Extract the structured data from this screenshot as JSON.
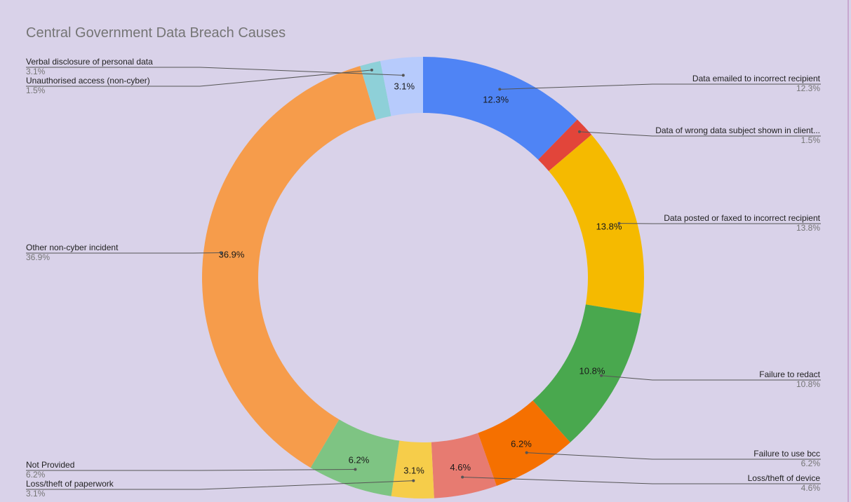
{
  "chart_data": {
    "type": "pie",
    "donut": true,
    "title": "Central Government Data Breach Causes",
    "slices": [
      {
        "label": "Data emailed to incorrect recipient",
        "value": 12.3,
        "pct_label": "12.3%",
        "color": "#4f84f5"
      },
      {
        "label": "Data of wrong data subject shown in client...",
        "value": 1.5,
        "pct_label": "1.5%",
        "color": "#e2453a"
      },
      {
        "label": "Data posted or faxed to incorrect recipient",
        "value": 13.8,
        "pct_label": "13.8%",
        "color": "#f5ba00"
      },
      {
        "label": "Failure to redact",
        "value": 10.8,
        "pct_label": "10.8%",
        "color": "#49a84e"
      },
      {
        "label": "Failure to use bcc",
        "value": 6.2,
        "pct_label": "6.2%",
        "color": "#f57000"
      },
      {
        "label": "Loss/theft of device",
        "value": 4.6,
        "pct_label": "4.6%",
        "color": "#e77b71"
      },
      {
        "label": "Loss/theft of paperwork",
        "value": 3.1,
        "pct_label": "3.1%",
        "color": "#f6cd4a"
      },
      {
        "label": "Not Provided",
        "value": 6.2,
        "pct_label": "6.2%",
        "color": "#7ec483"
      },
      {
        "label": "Other non-cyber incident",
        "value": 36.9,
        "pct_label": "36.9%",
        "color": "#f69c4b"
      },
      {
        "label": "Unauthorised access (non-cyber)",
        "value": 1.5,
        "pct_label": "1.5%",
        "color": "#8ed0d8"
      },
      {
        "label": "Verbal disclosure of personal data",
        "value": 3.1,
        "pct_label": "3.1%",
        "color": "#b7cbfc"
      }
    ],
    "legend": "labels-with-leader-lines"
  }
}
